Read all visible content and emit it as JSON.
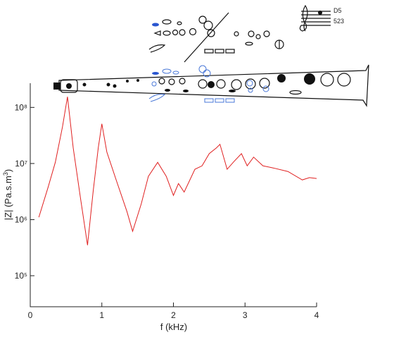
{
  "chart_data": {
    "type": "line",
    "note": "D5",
    "frequency_label": "523",
    "xlabel": "f (kHz)",
    "ylabel": [
      "|Z| (Pa.s.m",
      "3",
      ")"
    ],
    "log_y": true,
    "xlim": [
      0,
      4
    ],
    "xticks": [
      0,
      1,
      2,
      3,
      4
    ],
    "ylim": [
      28000,
      270000000
    ],
    "yticks": [
      {
        "value": 100000,
        "label": "10⁵"
      },
      {
        "value": 1000000,
        "label": "10⁶"
      },
      {
        "value": 10000000,
        "label": "10⁷"
      },
      {
        "value": 100000000,
        "label": "10⁸"
      }
    ],
    "series": [
      {
        "color": "#e02020",
        "x": [
          0.12,
          0.25,
          0.35,
          0.45,
          0.52,
          0.6,
          0.7,
          0.8,
          0.88,
          0.95,
          1.0,
          1.07,
          1.2,
          1.35,
          1.43,
          1.55,
          1.65,
          1.78,
          1.9,
          2.0,
          2.07,
          2.15,
          2.3,
          2.4,
          2.5,
          2.6,
          2.65,
          2.75,
          2.85,
          2.95,
          3.03,
          3.12,
          3.25,
          3.4,
          3.6,
          3.8,
          3.9,
          4.0
        ],
        "values": [
          1100000,
          3800000,
          10500000,
          45000000,
          155000000,
          19000000,
          2500000,
          350000,
          3300000,
          19000000,
          51000000,
          16000000,
          5100000,
          1400000,
          620000,
          1900000,
          5900000,
          10500000,
          5900000,
          2700000,
          4400000,
          3100000,
          7900000,
          9100000,
          15000000,
          19000000,
          22000000,
          7900000,
          11000000,
          15000000,
          9100000,
          13000000,
          9100000,
          8300000,
          7200000,
          5100000,
          5600000,
          5400000
        ]
      }
    ]
  }
}
